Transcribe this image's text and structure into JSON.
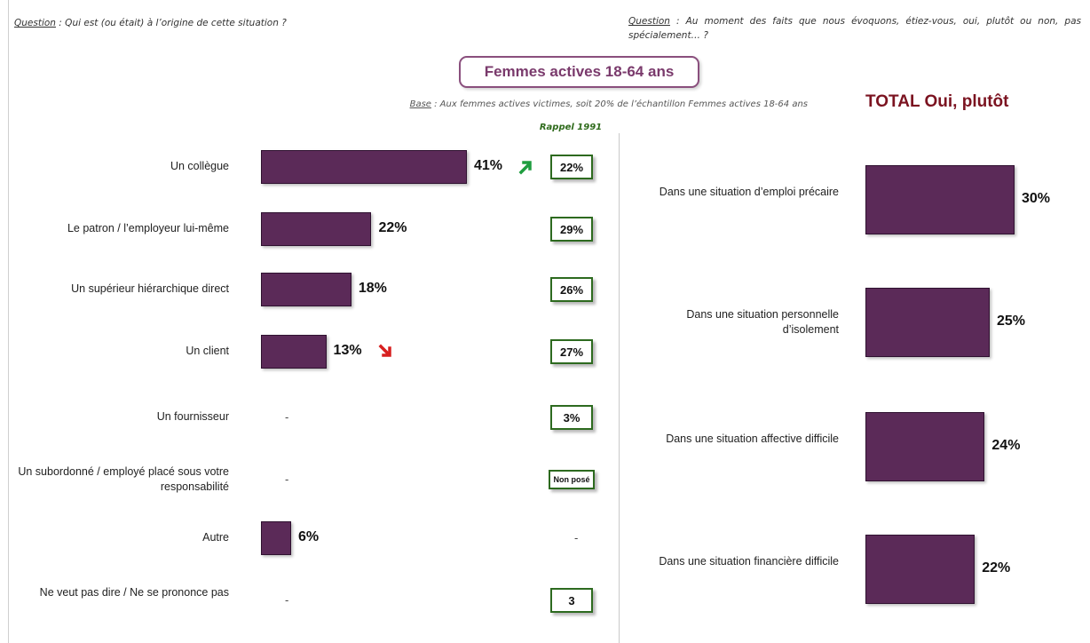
{
  "questions": {
    "left_label": "Question",
    "left_text": " : Qui est (ou était) à l’origine de cette situation ?",
    "right_label": "Question",
    "right_text": " : Au moment des faits que nous évoquons, étiez-vous, oui, plutôt ou non, pas spécialement… ?"
  },
  "title": "Femmes actives 18-64 ans",
  "base": {
    "label": "Base",
    "text": " : Aux femmes actives victimes, soit 20% de l’échantillon Femmes actives 18-64 ans"
  },
  "colors": {
    "bar": "#5b2a58",
    "up_arrow": "#1f9d3f",
    "down_arrow": "#d71f1f",
    "recall_border": "#2d6a1f"
  },
  "chart_data": [
    {
      "type": "bar",
      "orientation": "horizontal",
      "unit": "%",
      "categories": [
        "Un collègue",
        "Le patron / l’employeur lui-même",
        "Un supérieur hiérarchique direct",
        "Un client",
        "Un fournisseur",
        "Un subordonné / employé placé sous votre responsabilité",
        "Autre",
        "Ne veut pas dire / Ne se prononce pas"
      ],
      "series": [
        {
          "values": [
            41,
            22,
            18,
            13,
            null,
            null,
            6,
            null
          ]
        }
      ],
      "value_labels": [
        "41%",
        "22%",
        "18%",
        "13%",
        "-",
        "-",
        "6%",
        "-"
      ],
      "trend_icons": [
        "up-arrow-icon",
        "",
        "",
        "down-arrow-icon",
        "",
        "",
        "",
        ""
      ],
      "recall": {
        "header": "Rappel 1991",
        "labels": [
          "22%",
          "29%",
          "26%",
          "27%",
          "3%",
          "Non posé",
          "-",
          "3"
        ]
      }
    },
    {
      "type": "bar",
      "orientation": "horizontal",
      "unit": "%",
      "title": "TOTAL Oui, plutôt",
      "categories": [
        "Dans une situation d’emploi précaire",
        "Dans une situation personnelle d’isolement",
        "Dans une situation affective difficile",
        "Dans une situation financière difficile"
      ],
      "series": [
        {
          "values": [
            30,
            25,
            24,
            22
          ]
        }
      ],
      "value_labels": [
        "30%",
        "25%",
        "24%",
        "22%"
      ]
    }
  ]
}
